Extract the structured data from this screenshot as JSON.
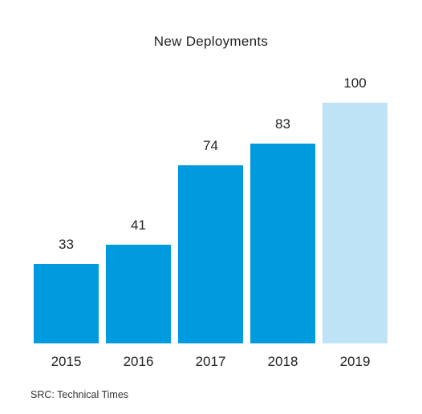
{
  "chart_data": {
    "type": "bar",
    "title": "New Deployments",
    "categories": [
      "2015",
      "2016",
      "2017",
      "2018",
      "2019"
    ],
    "values": [
      33,
      41,
      74,
      83,
      100
    ],
    "xlabel": "",
    "ylabel": "",
    "ylim": [
      0,
      100
    ],
    "grid": false,
    "bar_colors": [
      "#009bde",
      "#009bde",
      "#009bde",
      "#009bde",
      "#bfe3f6"
    ],
    "label_color": "#222222",
    "source": "SRC: Technical Times"
  }
}
